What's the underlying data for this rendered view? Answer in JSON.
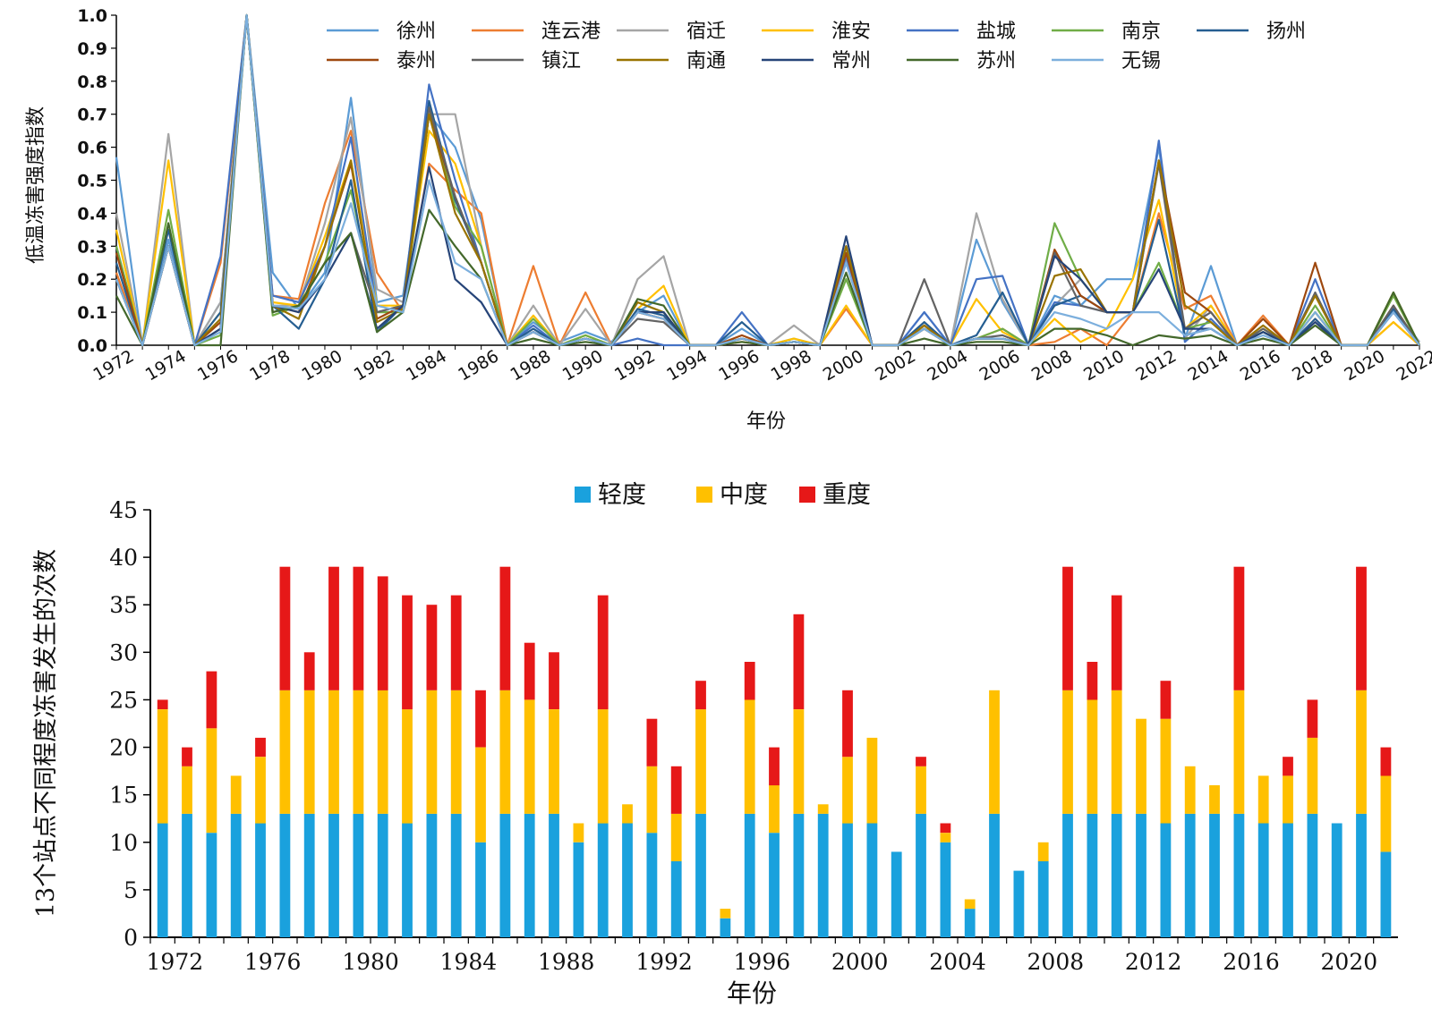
{
  "chart_data": [
    {
      "type": "line",
      "xlabel": "年份",
      "ylabel": "低温冻害强度指数",
      "ylim": [
        0,
        1.0
      ],
      "yticks": [
        "0.0",
        "0.1",
        "0.2",
        "0.3",
        "0.4",
        "0.5",
        "0.6",
        "0.7",
        "0.8",
        "0.9",
        "1.0"
      ],
      "x": [
        1972,
        1973,
        1974,
        1975,
        1976,
        1977,
        1978,
        1979,
        1980,
        1981,
        1982,
        1983,
        1984,
        1985,
        1986,
        1987,
        1988,
        1989,
        1990,
        1991,
        1992,
        1993,
        1994,
        1995,
        1996,
        1997,
        1998,
        1999,
        2000,
        2001,
        2002,
        2003,
        2004,
        2005,
        2006,
        2007,
        2008,
        2009,
        2010,
        2011,
        2012,
        2013,
        2014,
        2015,
        2016,
        2017,
        2018,
        2019,
        2020,
        2021,
        2022
      ],
      "xtick_labels": [
        "1972",
        "1974",
        "1976",
        "1978",
        "1980",
        "1982",
        "1984",
        "1986",
        "1988",
        "1990",
        "1992",
        "1994",
        "1996",
        "1998",
        "2000",
        "2002",
        "2004",
        "2006",
        "2008",
        "2010",
        "2012",
        "2014",
        "2016",
        "2018",
        "2020",
        "2022"
      ],
      "legend_position": "top",
      "series": [
        {
          "name": "徐州",
          "color": "#5b9bd5",
          "values": [
            0.57,
            0,
            0.32,
            0,
            0.13,
            1.0,
            0.22,
            0.11,
            0.22,
            0.75,
            0.13,
            0.15,
            0.7,
            0.6,
            0.38,
            0,
            0.07,
            0.01,
            0.04,
            0.01,
            0.1,
            0.15,
            0,
            0,
            0.05,
            0,
            0.02,
            0,
            0.25,
            0,
            0,
            0.1,
            0,
            0.32,
            0.13,
            0,
            0.15,
            0.12,
            0.2,
            0.2,
            0.6,
            0.02,
            0.24,
            0,
            0.04,
            0,
            0.1,
            0,
            0,
            0.11,
            0.01
          ]
        },
        {
          "name": "连云港",
          "color": "#ed7d31",
          "values": [
            0.22,
            0,
            0.3,
            0,
            0.25,
            1.0,
            0.15,
            0.14,
            0.43,
            0.65,
            0.22,
            0.1,
            0.55,
            0.47,
            0.4,
            0,
            0.24,
            0,
            0.16,
            0,
            0.1,
            0.08,
            0,
            0,
            0.01,
            0,
            0.01,
            0,
            0.11,
            0,
            0,
            0.05,
            0,
            0.02,
            0.05,
            0,
            0.01,
            0.05,
            0,
            0.1,
            0.4,
            0.11,
            0.15,
            0,
            0.09,
            0,
            0.08,
            0,
            0,
            0.07,
            0
          ]
        },
        {
          "name": "宿迁",
          "color": "#a5a5a5",
          "values": [
            0.4,
            0,
            0.64,
            0,
            0.13,
            1.0,
            0.12,
            0.12,
            0.37,
            0.69,
            0.17,
            0.13,
            0.7,
            0.7,
            0.3,
            0,
            0.12,
            0,
            0.11,
            0,
            0.2,
            0.27,
            0,
            0,
            0.02,
            0,
            0.06,
            0,
            0.26,
            0,
            0,
            0.07,
            0,
            0.4,
            0.14,
            0,
            0.12,
            0.2,
            0.1,
            0.1,
            0.55,
            0.02,
            0.12,
            0,
            0.04,
            0,
            0.1,
            0,
            0,
            0.1,
            0.01
          ]
        },
        {
          "name": "淮安",
          "color": "#ffc000",
          "values": [
            0.35,
            0,
            0.56,
            0,
            0.1,
            1.0,
            0.13,
            0.12,
            0.33,
            0.56,
            0.12,
            0.12,
            0.65,
            0.55,
            0.3,
            0,
            0.09,
            0,
            0.03,
            0,
            0.11,
            0.18,
            0,
            0,
            0.02,
            0,
            0.02,
            0,
            0.12,
            0,
            0,
            0.05,
            0,
            0.14,
            0.04,
            0,
            0.08,
            0.01,
            0.05,
            0.2,
            0.44,
            0.05,
            0.12,
            0,
            0.05,
            0,
            0.1,
            0,
            0,
            0.07,
            0
          ]
        },
        {
          "name": "盐城",
          "color": "#4472c4",
          "values": [
            0.3,
            0,
            0.3,
            0,
            0.27,
            1.0,
            0.15,
            0.13,
            0.3,
            0.63,
            0.1,
            0.12,
            0.79,
            0.5,
            0.25,
            0,
            0.06,
            0,
            0.02,
            0,
            0.02,
            0,
            0,
            0,
            0.1,
            0,
            0.01,
            0,
            0.27,
            0,
            0,
            0.1,
            0,
            0.2,
            0.21,
            0,
            0.13,
            0.12,
            0.1,
            0.1,
            0.62,
            0.01,
            0.08,
            0,
            0.04,
            0,
            0.2,
            0,
            0,
            0.1,
            0
          ]
        },
        {
          "name": "南京",
          "color": "#70ad47",
          "values": [
            0.3,
            0,
            0.41,
            0,
            0.03,
            1.0,
            0.09,
            0.12,
            0.25,
            0.47,
            0.1,
            0.1,
            0.7,
            0.42,
            0.3,
            0,
            0.08,
            0,
            0.03,
            0,
            0.13,
            0.1,
            0,
            0,
            0.02,
            0,
            0.01,
            0,
            0.2,
            0,
            0,
            0.05,
            0,
            0.02,
            0.05,
            0,
            0.37,
            0.2,
            0.1,
            0.1,
            0.25,
            0.05,
            0.07,
            0,
            0.04,
            0,
            0.12,
            0,
            0,
            0.15,
            0
          ]
        },
        {
          "name": "扬州",
          "color": "#255e91",
          "values": [
            0.25,
            0,
            0.35,
            0,
            0.1,
            1.0,
            0.12,
            0.05,
            0.2,
            0.5,
            0.04,
            0.12,
            0.74,
            0.44,
            0.25,
            0,
            0.05,
            0,
            0.02,
            0,
            0.11,
            0.09,
            0,
            0,
            0.07,
            0,
            0.01,
            0,
            0.3,
            0,
            0,
            0.07,
            0,
            0.03,
            0.16,
            0,
            0.12,
            0.15,
            0.1,
            0.1,
            0.38,
            0.03,
            0.05,
            0,
            0.04,
            0,
            0.08,
            0,
            0,
            0.11,
            0
          ]
        },
        {
          "name": "泰州",
          "color": "#9e480e",
          "values": [
            0.28,
            0,
            0.3,
            0,
            0.07,
            1.0,
            0.12,
            0.1,
            0.3,
            0.55,
            0.08,
            0.12,
            0.7,
            0.45,
            0.25,
            0,
            0.04,
            0,
            0.02,
            0,
            0.1,
            0.08,
            0,
            0,
            0.03,
            0,
            0.01,
            0,
            0.28,
            0,
            0,
            0.06,
            0,
            0.02,
            0.02,
            0,
            0.29,
            0.15,
            0.1,
            0.1,
            0.56,
            0.16,
            0.1,
            0,
            0.08,
            0,
            0.25,
            0,
            0,
            0.12,
            0
          ]
        },
        {
          "name": "镇江",
          "color": "#636363",
          "values": [
            0.2,
            0,
            0.3,
            0,
            0.05,
            1.0,
            0.1,
            0.12,
            0.25,
            0.34,
            0.1,
            0.12,
            0.72,
            0.45,
            0.25,
            0,
            0.04,
            0,
            0.02,
            0,
            0.08,
            0.07,
            0,
            0,
            0.02,
            0,
            0.01,
            0,
            0.3,
            0,
            0,
            0.2,
            0,
            0.02,
            0.03,
            0,
            0.28,
            0.12,
            0.1,
            0.1,
            0.55,
            0.05,
            0.1,
            0,
            0.05,
            0,
            0.16,
            0,
            0,
            0.12,
            0
          ]
        },
        {
          "name": "南通",
          "color": "#997300",
          "values": [
            0.2,
            0,
            0.3,
            0,
            0.08,
            1.0,
            0.12,
            0.08,
            0.3,
            0.56,
            0.07,
            0.11,
            0.7,
            0.4,
            0.25,
            0,
            0.04,
            0,
            0.02,
            0,
            0.13,
            0.1,
            0,
            0,
            0.02,
            0,
            0.01,
            0,
            0.3,
            0,
            0,
            0.06,
            0,
            0.02,
            0.02,
            0,
            0.21,
            0.23,
            0.1,
            0.1,
            0.56,
            0.12,
            0.07,
            0,
            0.06,
            0,
            0.15,
            0,
            0,
            0.16,
            0
          ]
        },
        {
          "name": "常州",
          "color": "#264478",
          "values": [
            0.2,
            0,
            0.3,
            0,
            0.05,
            1.0,
            0.12,
            0.1,
            0.2,
            0.34,
            0.05,
            0.12,
            0.54,
            0.2,
            0.13,
            0,
            0.04,
            0,
            0.02,
            0,
            0.1,
            0.1,
            0,
            0,
            0.02,
            0,
            0.01,
            0,
            0.33,
            0,
            0,
            0.05,
            0,
            0.02,
            0.02,
            0,
            0.27,
            0.2,
            0.1,
            0.1,
            0.23,
            0.05,
            0.05,
            0,
            0.04,
            0,
            0.07,
            0,
            0,
            0.1,
            0
          ]
        },
        {
          "name": "苏州",
          "color": "#43682b",
          "values": [
            0.15,
            0,
            0.37,
            0,
            0,
            1.0,
            0.1,
            0.12,
            0.25,
            0.34,
            0.04,
            0.1,
            0.41,
            0.3,
            0.2,
            0,
            0.02,
            0,
            0.01,
            0,
            0.14,
            0.12,
            0,
            0,
            0.01,
            0,
            0.01,
            0,
            0.22,
            0,
            0,
            0.02,
            0,
            0.01,
            0.01,
            0,
            0.05,
            0.05,
            0.03,
            0,
            0.03,
            0.02,
            0.03,
            0,
            0.02,
            0,
            0.06,
            0,
            0,
            0.16,
            0
          ]
        },
        {
          "name": "无锡",
          "color": "#7cafdd",
          "values": [
            0.2,
            0,
            0.3,
            0,
            0.04,
            1.0,
            0.12,
            0.11,
            0.2,
            0.43,
            0.12,
            0.1,
            0.5,
            0.25,
            0.2,
            0,
            0.04,
            0,
            0.02,
            0,
            0.1,
            0.08,
            0,
            0,
            0.02,
            0,
            0.01,
            0,
            0.25,
            0,
            0,
            0.05,
            0,
            0.02,
            0.02,
            0,
            0.1,
            0.08,
            0.05,
            0.1,
            0.1,
            0.03,
            0.05,
            0,
            0.03,
            0,
            0.1,
            0,
            0,
            0.1,
            0
          ]
        }
      ]
    },
    {
      "type": "bar",
      "stacked": true,
      "xlabel": "年份",
      "ylabel": "13个站点不同程度冻害发生的次数",
      "ylim": [
        0,
        45
      ],
      "yticks": [
        "0",
        "5",
        "10",
        "15",
        "20",
        "25",
        "30",
        "35",
        "40",
        "45"
      ],
      "legend_position": "top",
      "categories": [
        1972,
        1973,
        1974,
        1975,
        1976,
        1977,
        1978,
        1979,
        1980,
        1981,
        1982,
        1983,
        1984,
        1985,
        1986,
        1987,
        1988,
        1989,
        1990,
        1991,
        1992,
        1993,
        1994,
        1995,
        1996,
        1997,
        1998,
        1999,
        2000,
        2001,
        2002,
        2003,
        2004,
        2005,
        2006,
        2007,
        2008,
        2009,
        2010,
        2011,
        2012,
        2013,
        2014,
        2015,
        2016,
        2017,
        2018,
        2019,
        2020,
        2021,
        2022
      ],
      "xtick_labels": [
        "1972",
        "1976",
        "1980",
        "1984",
        "1988",
        "1992",
        "1996",
        "2000",
        "2004",
        "2008",
        "2012",
        "2016",
        "2020"
      ],
      "series": [
        {
          "name": "轻度",
          "color": "#1aa1dd",
          "values": [
            12,
            13,
            11,
            13,
            12,
            13,
            13,
            13,
            13,
            13,
            12,
            13,
            13,
            10,
            13,
            13,
            13,
            10,
            12,
            12,
            11,
            8,
            13,
            2,
            13,
            11,
            13,
            13,
            12,
            12,
            9,
            13,
            10,
            3,
            13,
            7,
            8,
            13,
            13,
            13,
            13,
            12,
            13,
            13,
            13,
            12,
            12,
            13,
            12,
            13,
            9
          ]
        },
        {
          "name": "中度",
          "color": "#ffc000",
          "values": [
            12,
            5,
            11,
            4,
            7,
            13,
            13,
            13,
            13,
            13,
            12,
            13,
            13,
            10,
            13,
            12,
            11,
            2,
            12,
            2,
            7,
            5,
            11,
            1,
            12,
            5,
            11,
            1,
            7,
            9,
            0,
            5,
            1,
            1,
            13,
            0,
            2,
            13,
            12,
            13,
            10,
            11,
            5,
            3,
            13,
            5,
            5,
            8,
            0,
            13,
            8
          ]
        },
        {
          "name": "重度",
          "color": "#e61818",
          "values": [
            1,
            2,
            6,
            0,
            2,
            13,
            4,
            13,
            13,
            12,
            12,
            9,
            10,
            6,
            13,
            6,
            6,
            0,
            12,
            0,
            5,
            5,
            3,
            0,
            4,
            4,
            10,
            0,
            7,
            0,
            0,
            1,
            1,
            0,
            0,
            0,
            0,
            13,
            4,
            10,
            0,
            4,
            0,
            0,
            13,
            0,
            2,
            4,
            0,
            13,
            3
          ]
        }
      ]
    }
  ]
}
